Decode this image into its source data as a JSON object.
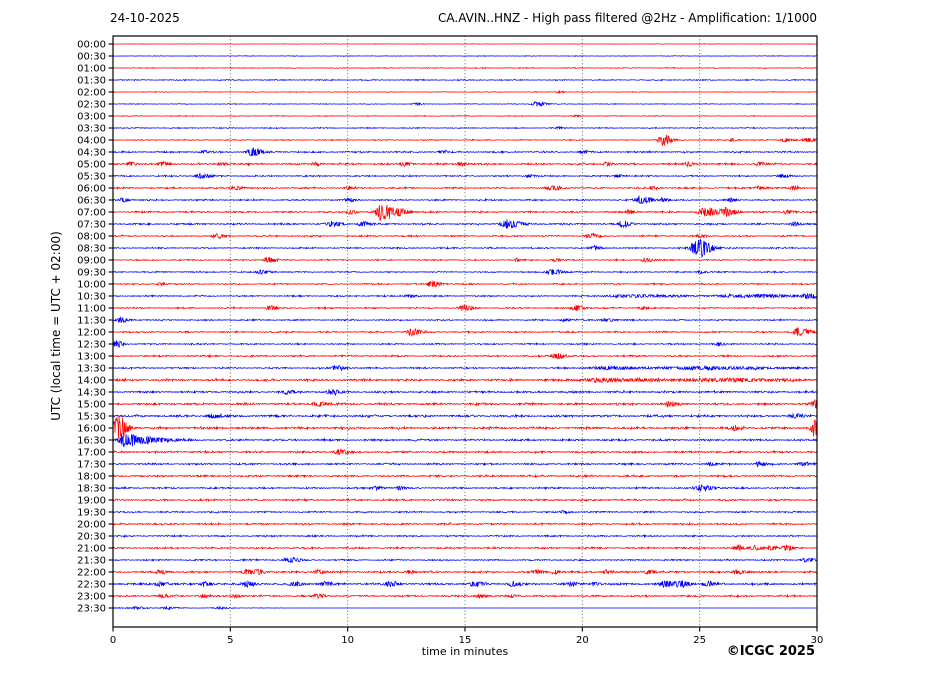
{
  "header": {
    "date": "24-10-2025",
    "title": "CA.AVIN..HNZ - High pass filtered @2Hz - Amplification: 1/1000"
  },
  "copyright": "©ICGC 2025",
  "x_axis": {
    "label": "time in minutes",
    "ticks": [
      0,
      5,
      10,
      15,
      20,
      25,
      30
    ],
    "range": [
      0,
      30
    ],
    "grid_minutes": [
      5,
      10,
      15,
      20,
      25
    ]
  },
  "y_axis": {
    "label": "UTC (local time = UTC + 02:00)"
  },
  "colors": {
    "red": "#ff0000",
    "blue": "#0000ff",
    "grid": "#555555",
    "axis": "#000000",
    "background": "#ffffff"
  },
  "chart_data": {
    "type": "line",
    "title": "CA.AVIN..HNZ - High pass filtered @2Hz - Amplification: 1/1000",
    "subtitle": "24-10-2025",
    "xlabel": "time in minutes",
    "ylabel": "UTC (local time = UTC + 02:00)",
    "x_range_minutes": [
      0,
      30
    ],
    "grid": true,
    "legend": "none",
    "description": "Helicorder: 48 half-hour seismic traces, alternating red (hh:00) and blue (hh:30). noise = background amplitude (px half-range); events = bursts [minute, amplitude_px, width_min]; taper = [start_min, end_min, final_factor].",
    "rows": [
      {
        "time": "00:00",
        "color": "red",
        "noise": 0.35,
        "events": []
      },
      {
        "time": "00:30",
        "color": "blue",
        "noise": 0.45,
        "events": []
      },
      {
        "time": "01:00",
        "color": "red",
        "noise": 0.65,
        "events": []
      },
      {
        "time": "01:30",
        "color": "blue",
        "noise": 0.85,
        "events": []
      },
      {
        "time": "02:00",
        "color": "red",
        "noise": 0.55,
        "events": [
          [
            19,
            1,
            0.15
          ]
        ]
      },
      {
        "time": "02:30",
        "color": "blue",
        "noise": 0.55,
        "events": [
          [
            12.9,
            1.2,
            0.18
          ],
          [
            18.05,
            2.6,
            0.3
          ]
        ]
      },
      {
        "time": "03:00",
        "color": "red",
        "noise": 0.6,
        "events": [
          [
            19.7,
            0.9,
            0.15
          ]
        ]
      },
      {
        "time": "03:30",
        "color": "blue",
        "noise": 0.8,
        "events": [
          [
            19,
            0.9,
            0.2
          ]
        ]
      },
      {
        "time": "04:00",
        "color": "red",
        "noise": 0.8,
        "events": [
          [
            23.4,
            5.5,
            0.28
          ],
          [
            26.4,
            1.5,
            0.2
          ],
          [
            28.6,
            1.8,
            0.3
          ],
          [
            29.6,
            1.8,
            0.25
          ]
        ]
      },
      {
        "time": "04:30",
        "color": "blue",
        "noise": 1.25,
        "events": [
          [
            3.8,
            1.5,
            0.2
          ],
          [
            5.9,
            3.8,
            0.35
          ],
          [
            14,
            1.4,
            0.2
          ],
          [
            20,
            1.4,
            0.2
          ]
        ]
      },
      {
        "time": "05:00",
        "color": "red",
        "noise": 1.45,
        "events": [
          [
            0.7,
            2,
            0.2
          ],
          [
            2.1,
            2,
            0.25
          ],
          [
            4.6,
            1.8,
            0.2
          ],
          [
            8.6,
            1.8,
            0.2
          ],
          [
            12.4,
            2,
            0.25
          ],
          [
            14.8,
            1.8,
            0.2
          ],
          [
            21,
            1.8,
            0.2
          ],
          [
            24.5,
            1.8,
            0.2
          ],
          [
            27.5,
            1.8,
            0.2
          ]
        ]
      },
      {
        "time": "05:30",
        "color": "blue",
        "noise": 1.1,
        "events": [
          [
            3.7,
            2.4,
            0.3
          ],
          [
            17.7,
            1.5,
            0.2
          ],
          [
            21.5,
            1.5,
            0.2
          ],
          [
            28.5,
            1.8,
            0.25
          ]
        ]
      },
      {
        "time": "06:00",
        "color": "red",
        "noise": 1.25,
        "events": [
          [
            5.2,
            2.2,
            0.25
          ],
          [
            10,
            1.5,
            0.2
          ],
          [
            18.7,
            2.4,
            0.3
          ],
          [
            23,
            1.5,
            0.2
          ],
          [
            27.5,
            2,
            0.25
          ],
          [
            29,
            2,
            0.2
          ]
        ]
      },
      {
        "time": "06:30",
        "color": "blue",
        "noise": 1.15,
        "events": [
          [
            0.4,
            2,
            0.2
          ],
          [
            10,
            1.6,
            0.25
          ],
          [
            22.5,
            3.4,
            0.4
          ],
          [
            23.4,
            1.6,
            0.2
          ],
          [
            26.3,
            1.6,
            0.2
          ]
        ]
      },
      {
        "time": "07:00",
        "color": "red",
        "noise": 1.3,
        "events": [
          [
            10.1,
            2.2,
            0.2
          ],
          [
            11.45,
            9,
            0.35
          ],
          [
            12.2,
            3,
            0.3
          ],
          [
            22,
            1.6,
            0.2
          ],
          [
            25.2,
            4.5,
            0.4
          ],
          [
            26.1,
            3.8,
            0.35
          ],
          [
            28.7,
            2,
            0.25
          ]
        ]
      },
      {
        "time": "07:30",
        "color": "blue",
        "noise": 1.35,
        "events": [
          [
            9.3,
            2.8,
            0.3
          ],
          [
            10.6,
            2.2,
            0.25
          ],
          [
            16.8,
            4.2,
            0.4
          ],
          [
            21.7,
            2.8,
            0.3
          ],
          [
            29,
            2,
            0.2
          ]
        ]
      },
      {
        "time": "08:00",
        "color": "red",
        "noise": 1.2,
        "events": [
          [
            4.4,
            2,
            0.25
          ],
          [
            20.3,
            2,
            0.3
          ],
          [
            25,
            1.6,
            0.2
          ]
        ]
      },
      {
        "time": "08:30",
        "color": "blue",
        "noise": 1.1,
        "events": [
          [
            20.5,
            1.8,
            0.2
          ],
          [
            24.9,
            10,
            0.4
          ]
        ]
      },
      {
        "time": "09:00",
        "color": "red",
        "noise": 1.0,
        "events": [
          [
            6.6,
            3.2,
            0.25
          ],
          [
            17.2,
            1.2,
            0.15
          ],
          [
            18.8,
            1.4,
            0.2
          ],
          [
            22.7,
            1.8,
            0.3
          ]
        ]
      },
      {
        "time": "09:30",
        "color": "blue",
        "noise": 1.0,
        "events": [
          [
            6.3,
            1.8,
            0.3
          ],
          [
            18.7,
            2.8,
            0.35
          ],
          [
            25,
            1.4,
            0.2
          ]
        ]
      },
      {
        "time": "10:00",
        "color": "red",
        "noise": 1.1,
        "events": [
          [
            2,
            1.4,
            0.2
          ],
          [
            13.6,
            2.8,
            0.3
          ]
        ]
      },
      {
        "time": "10:30",
        "color": "blue",
        "noise": 1.1,
        "events": [
          [
            12.6,
            1.6,
            0.25
          ],
          [
            22,
            1.3,
            1.5
          ],
          [
            27,
            1.4,
            1.8
          ],
          [
            29.6,
            2,
            0.35
          ]
        ]
      },
      {
        "time": "11:00",
        "color": "red",
        "noise": 1.1,
        "events": [
          [
            6.7,
            2.4,
            0.25
          ],
          [
            14.9,
            2.8,
            0.3
          ],
          [
            19.7,
            2.5,
            0.3
          ],
          [
            22.5,
            1.6,
            0.2
          ]
        ]
      },
      {
        "time": "11:30",
        "color": "blue",
        "noise": 1.1,
        "events": [
          [
            0.3,
            2.6,
            0.25
          ],
          [
            19.2,
            1.5,
            0.2
          ],
          [
            21,
            1.8,
            0.25
          ]
        ]
      },
      {
        "time": "12:00",
        "color": "red",
        "noise": 1.2,
        "events": [
          [
            12.7,
            3.6,
            0.3
          ],
          [
            29.2,
            3.5,
            0.4
          ]
        ]
      },
      {
        "time": "12:30",
        "color": "blue",
        "noise": 1.1,
        "events": [
          [
            0.15,
            3.5,
            0.2
          ],
          [
            25.8,
            1.5,
            0.2
          ]
        ]
      },
      {
        "time": "13:00",
        "color": "red",
        "noise": 1.3,
        "events": [
          [
            18.9,
            2.8,
            0.3
          ]
        ]
      },
      {
        "time": "13:30",
        "color": "blue",
        "noise": 1.2,
        "events": [
          [
            9.5,
            2.4,
            0.3
          ],
          [
            21,
            1.4,
            1.2
          ],
          [
            25,
            1.5,
            2.2
          ]
        ]
      },
      {
        "time": "14:00",
        "color": "red",
        "noise": 1.8,
        "events": [
          [
            21,
            1.4,
            2
          ],
          [
            26,
            1.4,
            2
          ]
        ]
      },
      {
        "time": "14:30",
        "color": "blue",
        "noise": 1.6,
        "events": [
          [
            7.4,
            1.8,
            0.25
          ],
          [
            9.3,
            2.2,
            0.3
          ]
        ]
      },
      {
        "time": "15:00",
        "color": "red",
        "noise": 1.8,
        "events": [
          [
            8.7,
            2.2,
            0.3
          ],
          [
            23.7,
            1.8,
            0.25
          ],
          [
            29.9,
            3.5,
            0.3
          ]
        ]
      },
      {
        "time": "15:30",
        "color": "blue",
        "noise": 1.8,
        "events": [
          [
            4.2,
            1.8,
            0.3
          ],
          [
            29,
            1.8,
            0.3
          ]
        ]
      },
      {
        "time": "16:00",
        "color": "red",
        "noise": 1.8,
        "events": [
          [
            0.18,
            13,
            0.3
          ],
          [
            26.5,
            2,
            0.25
          ],
          [
            29.95,
            10,
            0.3
          ]
        ]
      },
      {
        "time": "16:30",
        "color": "blue",
        "noise": 1.5,
        "events": [
          [
            0.55,
            7,
            0.45
          ],
          [
            1.6,
            2.5,
            0.7
          ]
        ]
      },
      {
        "time": "17:00",
        "color": "red",
        "noise": 1.6,
        "events": [
          [
            9.6,
            2.2,
            0.3
          ]
        ]
      },
      {
        "time": "17:30",
        "color": "blue",
        "noise": 1.4,
        "events": [
          [
            25.4,
            1.6,
            0.2
          ],
          [
            27.5,
            1.8,
            0.25
          ],
          [
            29.3,
            2,
            0.25
          ]
        ]
      },
      {
        "time": "18:00",
        "color": "red",
        "noise": 1.5,
        "events": []
      },
      {
        "time": "18:30",
        "color": "blue",
        "noise": 1.3,
        "events": [
          [
            11.2,
            1.6,
            0.25
          ],
          [
            12.2,
            1.6,
            0.2
          ],
          [
            25.1,
            2.8,
            0.4
          ]
        ]
      },
      {
        "time": "19:00",
        "color": "red",
        "noise": 1.5,
        "events": []
      },
      {
        "time": "19:30",
        "color": "blue",
        "noise": 1.2,
        "events": [
          [
            19.2,
            1.4,
            0.2
          ]
        ]
      },
      {
        "time": "20:00",
        "color": "red",
        "noise": 1.4,
        "events": []
      },
      {
        "time": "20:30",
        "color": "blue",
        "noise": 1.2,
        "events": []
      },
      {
        "time": "21:00",
        "color": "red",
        "noise": 1.4,
        "events": [
          [
            26.6,
            2.4,
            0.25
          ],
          [
            27.3,
            2.4,
            0.25
          ],
          [
            28,
            2,
            0.2
          ],
          [
            28.7,
            2.4,
            0.25
          ]
        ]
      },
      {
        "time": "21:30",
        "color": "blue",
        "noise": 1.2,
        "events": [
          [
            7.5,
            2.6,
            0.35
          ],
          [
            29.5,
            1.8,
            0.3
          ]
        ]
      },
      {
        "time": "22:00",
        "color": "red",
        "noise": 1.5,
        "events": [
          [
            2,
            2,
            0.25
          ],
          [
            5.7,
            2.2,
            0.3
          ],
          [
            6.2,
            2,
            0.2
          ],
          [
            8.7,
            2,
            0.25
          ],
          [
            12.6,
            1.8,
            0.2
          ],
          [
            18,
            2,
            0.25
          ],
          [
            18.8,
            2,
            0.2
          ],
          [
            21,
            1.8,
            0.2
          ],
          [
            22.8,
            2,
            0.25
          ],
          [
            26.6,
            2.2,
            0.3
          ]
        ]
      },
      {
        "time": "22:30",
        "color": "blue",
        "noise": 1.7,
        "events": [
          [
            2,
            2,
            0.3
          ],
          [
            3.9,
            2,
            0.25
          ],
          [
            5.7,
            2.2,
            0.3
          ],
          [
            7.7,
            2,
            0.25
          ],
          [
            9,
            2,
            0.25
          ],
          [
            11.8,
            2.4,
            0.3
          ],
          [
            15.4,
            2.4,
            0.3
          ],
          [
            17,
            2,
            0.25
          ],
          [
            19.5,
            2,
            0.25
          ],
          [
            20.5,
            2,
            0.2
          ],
          [
            23.5,
            2.8,
            0.35
          ],
          [
            24.2,
            2.8,
            0.3
          ],
          [
            25.3,
            2.2,
            0.25
          ]
        ]
      },
      {
        "time": "23:00",
        "color": "red",
        "noise": 1.4,
        "events": [
          [
            2.1,
            2,
            0.25
          ],
          [
            3.8,
            1.8,
            0.2
          ],
          [
            5.2,
            1.8,
            0.2
          ],
          [
            8.7,
            2,
            0.25
          ],
          [
            15.6,
            1.8,
            0.25
          ],
          [
            17,
            1.6,
            0.2
          ]
        ]
      },
      {
        "time": "23:30",
        "color": "blue",
        "noise": 0.8,
        "events": [
          [
            1,
            1.2,
            0.3
          ],
          [
            2.3,
            1,
            0.3
          ],
          [
            4.5,
            0.8,
            0.3
          ]
        ],
        "taper": [
          2,
          10,
          0.12
        ]
      }
    ]
  }
}
